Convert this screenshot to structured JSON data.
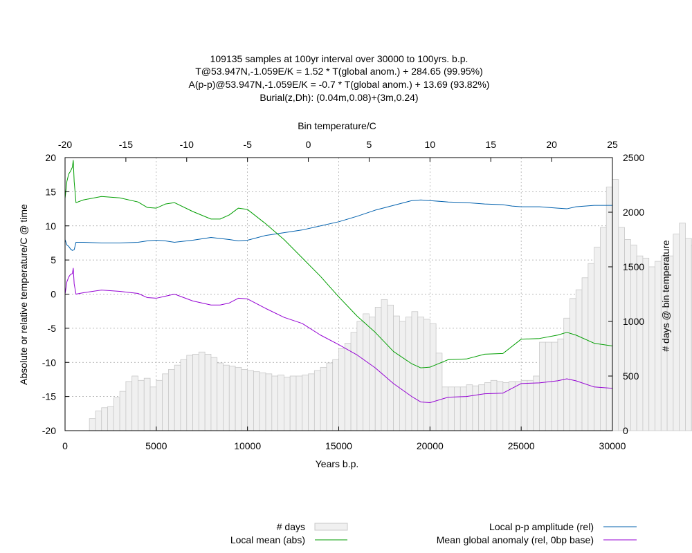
{
  "chart_data": {
    "type": "bar",
    "title_lines": [
      "109135 samples at 100yr interval over 30000 to 100yrs. b.p.",
      "T@53.947N,-1.059E/K = 1.52 * T(global anom.) + 284.65 (99.95%)",
      "A(p-p)@53.947N,-1.059E/K = -0.7 * T(global anom.) + 13.69 (93.82%)",
      "Burial(z,Dh): (0.04m,0.08)+(3m,0.24)"
    ],
    "xlabel": "Years b.p.",
    "ylabel": "Absolute or relative temperature/C @ time",
    "x2label": "Bin temperature/C",
    "y2label": "# days @ bin temperature",
    "xlim": [
      0,
      30000
    ],
    "ylim": [
      -20,
      20
    ],
    "x2lim": [
      -20,
      25
    ],
    "y2lim": [
      0,
      2500
    ],
    "grid": true,
    "legend_position": "bottom",
    "x_ticks": [
      "0",
      "5000",
      "10000",
      "15000",
      "20000",
      "25000",
      "30000"
    ],
    "y_ticks": [
      "-20",
      "-15",
      "-10",
      "-5",
      "0",
      "5",
      "10",
      "15",
      "20"
    ],
    "x2_ticks": [
      "-20",
      "-15",
      "-10",
      "-5",
      "0",
      "5",
      "10",
      "15",
      "20",
      "25"
    ],
    "y2_ticks": [
      "0",
      "500",
      "1000",
      "1500",
      "2000",
      "2500"
    ],
    "histogram": {
      "name": "# days",
      "color": "#f0f0f0",
      "edge_color": "#c8c8c8",
      "bin_start": -18,
      "bin_width": 0.5,
      "values": [
        110,
        180,
        210,
        220,
        300,
        360,
        450,
        500,
        460,
        480,
        400,
        460,
        520,
        560,
        600,
        650,
        690,
        700,
        720,
        700,
        670,
        620,
        600,
        590,
        580,
        560,
        550,
        540,
        530,
        520,
        500,
        510,
        490,
        500,
        500,
        510,
        520,
        550,
        580,
        620,
        650,
        750,
        800,
        900,
        1000,
        1070,
        1040,
        1130,
        1200,
        1150,
        1050,
        1000,
        1040,
        1090,
        1040,
        1020,
        980,
        710,
        400,
        400,
        400,
        400,
        420,
        410,
        420,
        440,
        460,
        450,
        440,
        450,
        450,
        460,
        460,
        500,
        810,
        810,
        810,
        840,
        1030,
        1210,
        1290,
        1400,
        1530,
        1680,
        1860,
        2230,
        2300,
        1860,
        1750,
        1700,
        1600,
        1580,
        1500,
        1550,
        1600,
        1600,
        1800,
        1900,
        1760,
        1700,
        1740,
        1900,
        1330,
        1560,
        1390,
        400,
        400,
        400,
        410,
        430,
        430,
        440,
        450,
        470,
        460,
        440,
        410,
        440,
        450,
        410,
        440,
        440,
        430,
        410,
        410
      ]
    },
    "series": [
      {
        "name": "Local p-p amplitude (rel)",
        "color": "#0060ad",
        "x": [
          0,
          100,
          200,
          300,
          400,
          500,
          600,
          1000,
          2000,
          3000,
          4000,
          4500,
          5000,
          5500,
          6000,
          7000,
          8000,
          9000,
          9500,
          10000,
          11000,
          12000,
          13000,
          14000,
          15000,
          16000,
          17000,
          18000,
          19000,
          19500,
          20000,
          21000,
          22000,
          23000,
          24000,
          24500,
          25000,
          26000,
          27000,
          27500,
          28000,
          29000,
          30000
        ],
        "y": [
          8,
          7.2,
          7,
          6.6,
          6.4,
          6.5,
          7.6,
          7.6,
          7.5,
          7.5,
          7.6,
          7.8,
          7.9,
          7.8,
          7.6,
          7.9,
          8.3,
          8,
          7.8,
          7.9,
          8.6,
          9,
          9.4,
          10,
          10.6,
          11.4,
          12.3,
          13,
          13.7,
          13.8,
          13.7,
          13.5,
          13.4,
          13.2,
          13.1,
          12.9,
          12.8,
          12.8,
          12.6,
          12.5,
          12.8,
          13,
          13
        ]
      },
      {
        "name": "Local mean (abs)",
        "color": "#009e00",
        "x": [
          0,
          100,
          200,
          300,
          400,
          450,
          500,
          600,
          1000,
          2000,
          3000,
          4000,
          4500,
          5000,
          5500,
          6000,
          7000,
          8000,
          8500,
          9000,
          9500,
          10000,
          11000,
          12000,
          13000,
          14000,
          15000,
          16000,
          17000,
          18000,
          19000,
          19500,
          20000,
          21000,
          22000,
          23000,
          24000,
          25000,
          26000,
          27000,
          27500,
          28000,
          29000,
          30000
        ],
        "y": [
          14,
          16.5,
          17.6,
          18,
          18.6,
          19.6,
          16.5,
          13.4,
          13.8,
          14.3,
          14.1,
          13.5,
          12.7,
          12.6,
          13.2,
          13.4,
          12.1,
          11,
          11,
          11.6,
          12.6,
          12.4,
          10.3,
          8,
          5.3,
          2.6,
          -0.4,
          -3.2,
          -5.6,
          -8.4,
          -10.2,
          -10.8,
          -10.7,
          -9.6,
          -9.5,
          -8.8,
          -8.7,
          -6.6,
          -6.5,
          -6,
          -5.6,
          -6,
          -7.2,
          -7.6
        ]
      },
      {
        "name": "Mean global anomaly (rel, 0bp base)",
        "color": "#9400d3",
        "x": [
          0,
          100,
          200,
          300,
          400,
          450,
          500,
          600,
          1000,
          2000,
          3000,
          4000,
          4500,
          5000,
          5500,
          6000,
          7000,
          8000,
          8500,
          9000,
          9500,
          10000,
          11000,
          12000,
          13000,
          14000,
          15000,
          16000,
          17000,
          18000,
          19000,
          19500,
          20000,
          21000,
          22000,
          23000,
          24000,
          25000,
          26000,
          27000,
          27500,
          28000,
          29000,
          30000
        ],
        "y": [
          0,
          1.8,
          2.5,
          2.9,
          3,
          3.8,
          1.5,
          0,
          0.2,
          0.6,
          0.4,
          0.1,
          -0.5,
          -0.6,
          -0.3,
          0,
          -1,
          -1.6,
          -1.6,
          -1.3,
          -0.6,
          -0.7,
          -2.1,
          -3.4,
          -4.3,
          -6,
          -7.4,
          -8.9,
          -10.8,
          -13.1,
          -15,
          -15.8,
          -15.9,
          -15.1,
          -15,
          -14.6,
          -14.5,
          -13.1,
          -13,
          -12.7,
          -12.4,
          -12.7,
          -13.6,
          -13.8
        ]
      }
    ],
    "legend": [
      {
        "label": "# days",
        "kind": "box"
      },
      {
        "label": "Local mean (abs)",
        "kind": "line",
        "color": "#009e00"
      },
      {
        "label": "Local p-p amplitude (rel)",
        "kind": "line",
        "color": "#0060ad"
      },
      {
        "label": "Mean global anomaly (rel, 0bp base)",
        "kind": "line",
        "color": "#9400d3"
      }
    ]
  }
}
